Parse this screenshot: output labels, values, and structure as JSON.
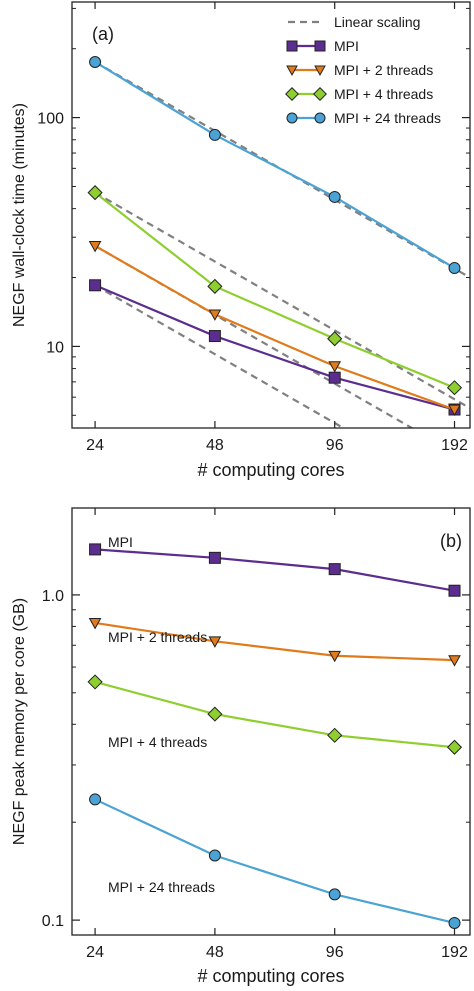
{
  "chart_data": [
    {
      "panel_label": "(a)",
      "type": "line",
      "xscale": "log2",
      "yscale": "log",
      "x": [
        24,
        48,
        96,
        192
      ],
      "xticks": [
        "24",
        "48",
        "96",
        "192"
      ],
      "xlabel": "# computing cores",
      "ylabel": "NEGF wall-clock time (minutes)",
      "yticks": [
        "10",
        "100"
      ],
      "xlim": [
        21,
        210
      ],
      "ylim": [
        4.4,
        320
      ],
      "grid": false,
      "legend_position": "top-right",
      "series": [
        {
          "name": "MPI",
          "values": [
            18.5,
            11.1,
            7.3,
            5.3
          ],
          "color": "#5b2d8e",
          "marker": "square"
        },
        {
          "name": "MPI + 2 threads",
          "values": [
            27.5,
            13.8,
            8.2,
            5.3
          ],
          "color": "#e07b1c",
          "marker": "triangle-down"
        },
        {
          "name": "MPI + 4 threads",
          "values": [
            47,
            18.3,
            10.8,
            6.6
          ],
          "color": "#8ecf2f",
          "marker": "diamond"
        },
        {
          "name": "MPI + 24 threads",
          "values": [
            175,
            84,
            45,
            22
          ],
          "color": "#4aa3d4",
          "marker": "circle"
        }
      ],
      "reference_lines": {
        "name": "Linear scaling",
        "color": "#808080",
        "style": "dashed",
        "from_values_at_24": [
          18.5,
          27.5,
          47,
          175
        ]
      }
    },
    {
      "panel_label": "(b)",
      "type": "line",
      "xscale": "log2",
      "yscale": "log",
      "x": [
        24,
        48,
        96,
        192
      ],
      "xticks": [
        "24",
        "48",
        "96",
        "192"
      ],
      "xlabel": "# computing cores",
      "ylabel": "NEGF peak memory per core (GB)",
      "yticks": [
        "0.1",
        "1.0"
      ],
      "xlim": [
        21,
        210
      ],
      "ylim": [
        0.09,
        1.85
      ],
      "grid": false,
      "series": [
        {
          "name": "MPI",
          "values": [
            1.38,
            1.3,
            1.2,
            1.03
          ],
          "color": "#5b2d8e",
          "marker": "square"
        },
        {
          "name": "MPI + 2 threads",
          "values": [
            0.82,
            0.72,
            0.65,
            0.63
          ],
          "color": "#e07b1c",
          "marker": "triangle-down"
        },
        {
          "name": "MPI + 4 threads",
          "values": [
            0.54,
            0.43,
            0.37,
            0.34
          ],
          "color": "#8ecf2f",
          "marker": "diamond"
        },
        {
          "name": "MPI + 24 threads",
          "values": [
            0.235,
            0.158,
            0.12,
            0.098
          ],
          "color": "#4aa3d4",
          "marker": "circle"
        }
      ]
    }
  ]
}
